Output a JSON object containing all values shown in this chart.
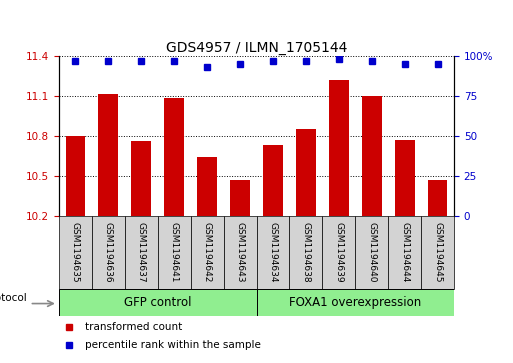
{
  "title": "GDS4957 / ILMN_1705144",
  "samples": [
    "GSM1194635",
    "GSM1194636",
    "GSM1194637",
    "GSM1194641",
    "GSM1194642",
    "GSM1194643",
    "GSM1194634",
    "GSM1194638",
    "GSM1194639",
    "GSM1194640",
    "GSM1194644",
    "GSM1194645"
  ],
  "bar_values": [
    10.8,
    11.12,
    10.76,
    11.09,
    10.64,
    10.47,
    10.73,
    10.85,
    11.22,
    11.1,
    10.77,
    10.47
  ],
  "percentile_values": [
    97,
    97,
    97,
    97,
    93,
    95,
    97,
    97,
    98,
    97,
    95,
    95
  ],
  "ylim_left": [
    10.2,
    11.4
  ],
  "ylim_right": [
    0,
    100
  ],
  "yticks_left": [
    10.2,
    10.5,
    10.8,
    11.1,
    11.4
  ],
  "ytick_labels_left": [
    "10.2",
    "10.5",
    "10.8",
    "11.1",
    "11.4"
  ],
  "yticks_right": [
    0,
    25,
    50,
    75,
    100
  ],
  "ytick_labels_right": [
    "0",
    "25",
    "50",
    "75",
    "100%"
  ],
  "bar_color": "#cc0000",
  "dot_color": "#0000cc",
  "group1_label": "GFP control",
  "group2_label": "FOXA1 overexpression",
  "group1_count": 6,
  "group2_count": 6,
  "protocol_label": "protocol",
  "legend_bar_label": "transformed count",
  "legend_dot_label": "percentile rank within the sample",
  "group_color": "#90ee90",
  "xlabel_area_color": "#d3d3d3",
  "background_color": "#ffffff",
  "title_fontsize": 10,
  "tick_fontsize": 7.5,
  "label_fontsize": 8,
  "sample_fontsize": 6.5,
  "group_fontsize": 8.5
}
